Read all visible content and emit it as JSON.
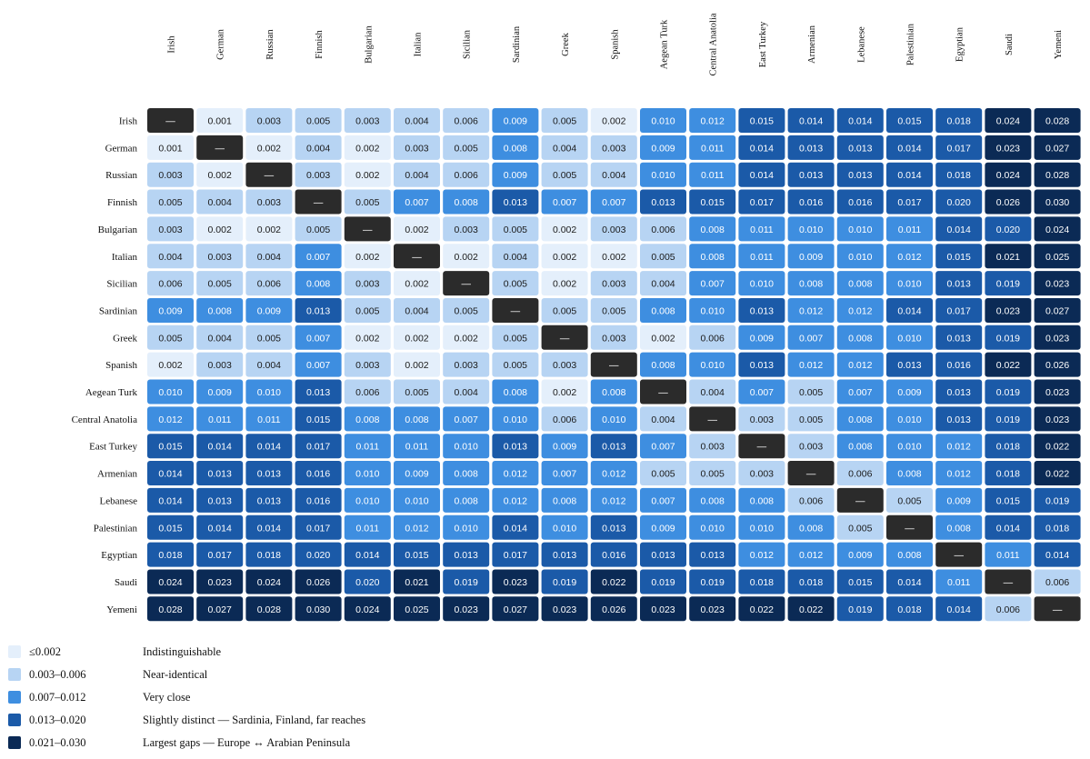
{
  "chart_data": {
    "type": "heatmap",
    "title": "",
    "labels": [
      "Irish",
      "German",
      "Russian",
      "Finnish",
      "Bulgarian",
      "Italian",
      "Sicilian",
      "Sardinian",
      "Greek",
      "Spanish",
      "Aegean Turk",
      "Central Anatolia",
      "East Turkey",
      "Armenian",
      "Lebanese",
      "Palestinian",
      "Egyptian",
      "Saudi",
      "Yemeni"
    ],
    "diagonal_marker": "—",
    "values": [
      [
        null,
        0.001,
        0.003,
        0.005,
        0.003,
        0.004,
        0.006,
        0.009,
        0.005,
        0.002,
        0.01,
        0.012,
        0.015,
        0.014,
        0.014,
        0.015,
        0.018,
        0.024,
        0.028
      ],
      [
        0.001,
        null,
        0.002,
        0.004,
        0.002,
        0.003,
        0.005,
        0.008,
        0.004,
        0.003,
        0.009,
        0.011,
        0.014,
        0.013,
        0.013,
        0.014,
        0.017,
        0.023,
        0.027
      ],
      [
        0.003,
        0.002,
        null,
        0.003,
        0.002,
        0.004,
        0.006,
        0.009,
        0.005,
        0.004,
        0.01,
        0.011,
        0.014,
        0.013,
        0.013,
        0.014,
        0.018,
        0.024,
        0.028
      ],
      [
        0.005,
        0.004,
        0.003,
        null,
        0.005,
        0.007,
        0.008,
        0.013,
        0.007,
        0.007,
        0.013,
        0.015,
        0.017,
        0.016,
        0.016,
        0.017,
        0.02,
        0.026,
        0.03
      ],
      [
        0.003,
        0.002,
        0.002,
        0.005,
        null,
        0.002,
        0.003,
        0.005,
        0.002,
        0.003,
        0.006,
        0.008,
        0.011,
        0.01,
        0.01,
        0.011,
        0.014,
        0.02,
        0.024
      ],
      [
        0.004,
        0.003,
        0.004,
        0.007,
        0.002,
        null,
        0.002,
        0.004,
        0.002,
        0.002,
        0.005,
        0.008,
        0.011,
        0.009,
        0.01,
        0.012,
        0.015,
        0.021,
        0.025
      ],
      [
        0.006,
        0.005,
        0.006,
        0.008,
        0.003,
        0.002,
        null,
        0.005,
        0.002,
        0.003,
        0.004,
        0.007,
        0.01,
        0.008,
        0.008,
        0.01,
        0.013,
        0.019,
        0.023
      ],
      [
        0.009,
        0.008,
        0.009,
        0.013,
        0.005,
        0.004,
        0.005,
        null,
        0.005,
        0.005,
        0.008,
        0.01,
        0.013,
        0.012,
        0.012,
        0.014,
        0.017,
        0.023,
        0.027
      ],
      [
        0.005,
        0.004,
        0.005,
        0.007,
        0.002,
        0.002,
        0.002,
        0.005,
        null,
        0.003,
        0.002,
        0.006,
        0.009,
        0.007,
        0.008,
        0.01,
        0.013,
        0.019,
        0.023
      ],
      [
        0.002,
        0.003,
        0.004,
        0.007,
        0.003,
        0.002,
        0.003,
        0.005,
        0.003,
        null,
        0.008,
        0.01,
        0.013,
        0.012,
        0.012,
        0.013,
        0.016,
        0.022,
        0.026
      ],
      [
        0.01,
        0.009,
        0.01,
        0.013,
        0.006,
        0.005,
        0.004,
        0.008,
        0.002,
        0.008,
        null,
        0.004,
        0.007,
        0.005,
        0.007,
        0.009,
        0.013,
        0.019,
        0.023
      ],
      [
        0.012,
        0.011,
        0.011,
        0.015,
        0.008,
        0.008,
        0.007,
        0.01,
        0.006,
        0.01,
        0.004,
        null,
        0.003,
        0.005,
        0.008,
        0.01,
        0.013,
        0.019,
        0.023
      ],
      [
        0.015,
        0.014,
        0.014,
        0.017,
        0.011,
        0.011,
        0.01,
        0.013,
        0.009,
        0.013,
        0.007,
        0.003,
        null,
        0.003,
        0.008,
        0.01,
        0.012,
        0.018,
        0.022
      ],
      [
        0.014,
        0.013,
        0.013,
        0.016,
        0.01,
        0.009,
        0.008,
        0.012,
        0.007,
        0.012,
        0.005,
        0.005,
        0.003,
        null,
        0.006,
        0.008,
        0.012,
        0.018,
        0.022
      ],
      [
        0.014,
        0.013,
        0.013,
        0.016,
        0.01,
        0.01,
        0.008,
        0.012,
        0.008,
        0.012,
        0.007,
        0.008,
        0.008,
        0.006,
        null,
        0.005,
        0.009,
        0.015,
        0.019
      ],
      [
        0.015,
        0.014,
        0.014,
        0.017,
        0.011,
        0.012,
        0.01,
        0.014,
        0.01,
        0.013,
        0.009,
        0.01,
        0.01,
        0.008,
        0.005,
        null,
        0.008,
        0.014,
        0.018
      ],
      [
        0.018,
        0.017,
        0.018,
        0.02,
        0.014,
        0.015,
        0.013,
        0.017,
        0.013,
        0.016,
        0.013,
        0.013,
        0.012,
        0.012,
        0.009,
        0.008,
        null,
        0.011,
        0.014
      ],
      [
        0.024,
        0.023,
        0.024,
        0.026,
        0.02,
        0.021,
        0.019,
        0.023,
        0.019,
        0.022,
        0.019,
        0.019,
        0.018,
        0.018,
        0.015,
        0.014,
        0.011,
        null,
        0.006
      ],
      [
        0.028,
        0.027,
        0.028,
        0.03,
        0.024,
        0.025,
        0.023,
        0.027,
        0.023,
        0.026,
        0.023,
        0.023,
        0.022,
        0.022,
        0.019,
        0.018,
        0.014,
        0.006,
        null
      ]
    ],
    "colors": {
      "diagonal": "#2b2b2b",
      "diagonal_text": "#ffffff",
      "dark_text": "#1a1a1a",
      "light_text": "#ffffff"
    },
    "legend": [
      {
        "range": "≤0.002",
        "label": "Indistinguishable",
        "min": 0,
        "max": 0.002,
        "color": "#e4effb"
      },
      {
        "range": "0.003–0.006",
        "label": "Near-identical",
        "min": 0.003,
        "max": 0.006,
        "color": "#b7d4f3"
      },
      {
        "range": "0.007–0.012",
        "label": "Very close",
        "min": 0.007,
        "max": 0.012,
        "color": "#3e8ee0"
      },
      {
        "range": "0.013–0.020",
        "label": "Slightly distinct — Sardinia, Finland, far reaches",
        "min": 0.013,
        "max": 0.02,
        "color": "#1b5aa8"
      },
      {
        "range": "0.021–0.030",
        "label": "Largest gaps — Europe ↔ Arabian Peninsula",
        "min": 0.021,
        "max": 0.03,
        "color": "#0b2a55"
      }
    ]
  }
}
